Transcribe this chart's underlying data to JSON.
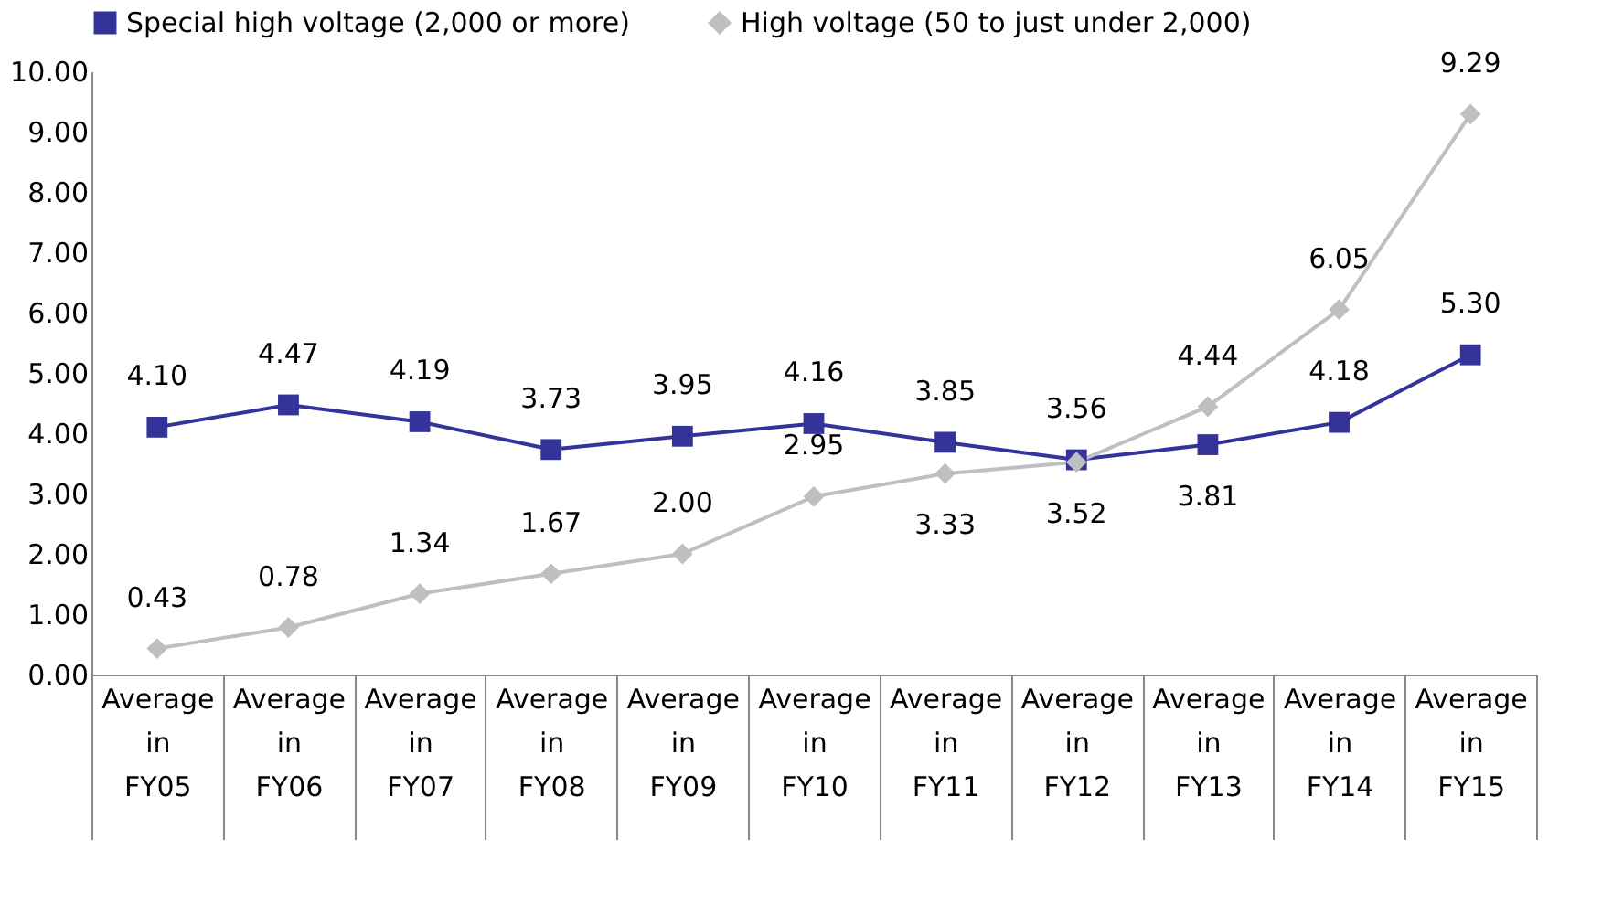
{
  "chart_data": {
    "type": "line",
    "categories": [
      "Average in FY05",
      "Average in FY06",
      "Average in FY07",
      "Average in FY08",
      "Average in FY09",
      "Average in FY10",
      "Average in FY11",
      "Average in FY12",
      "Average in FY13",
      "Average in FY14",
      "Average in FY15"
    ],
    "series": [
      {
        "name": "Special high voltage (2,000 or more)",
        "color": "#333399",
        "marker": "square",
        "values": [
          4.1,
          4.47,
          4.19,
          3.73,
          3.95,
          4.16,
          3.85,
          3.56,
          3.81,
          4.18,
          5.3
        ],
        "value_labels": [
          "4.10",
          "4.47",
          "4.19",
          "3.73",
          "3.95",
          "4.16",
          "3.85",
          "3.56",
          "3.81",
          "4.18",
          "5.30"
        ]
      },
      {
        "name": "High voltage (50 to just under 2,000)",
        "color": "#bfbfbf",
        "marker": "diamond",
        "values": [
          0.43,
          0.78,
          1.34,
          1.67,
          2.0,
          2.95,
          3.33,
          3.52,
          4.44,
          6.05,
          9.29
        ],
        "value_labels": [
          "0.43",
          "0.78",
          "1.34",
          "1.67",
          "2.00",
          "2.95",
          "3.33",
          "3.52",
          "4.44",
          "6.05",
          "9.29"
        ]
      }
    ],
    "ylim": [
      0,
      10
    ],
    "yticks": [
      {
        "value": 0,
        "label": "0.00"
      },
      {
        "value": 1,
        "label": "1.00"
      },
      {
        "value": 2,
        "label": "2.00"
      },
      {
        "value": 3,
        "label": "3.00"
      },
      {
        "value": 4,
        "label": "4.00"
      },
      {
        "value": 5,
        "label": "5.00"
      },
      {
        "value": 6,
        "label": "6.00"
      },
      {
        "value": 7,
        "label": "7.00"
      },
      {
        "value": 8,
        "label": "8.00"
      },
      {
        "value": 9,
        "label": "9.00"
      },
      {
        "value": 10,
        "label": "10.00"
      }
    ],
    "data_labels": true,
    "grid": false,
    "legend": "top"
  }
}
